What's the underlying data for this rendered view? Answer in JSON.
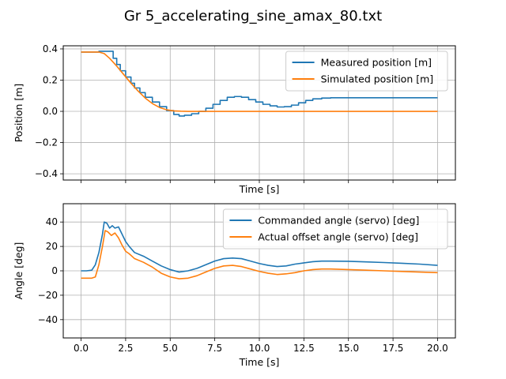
{
  "figure": {
    "title": "Gr 5_accelerating_sine_amax_80.txt"
  },
  "colors": {
    "blue": "#1f77b4",
    "orange": "#ff7f0e",
    "grid": "#b0b0b0"
  },
  "chart_data": [
    {
      "type": "line",
      "title": "",
      "xlabel": "Time [s]",
      "ylabel": "Position [m]",
      "xlim": [
        -1.0,
        21.0
      ],
      "ylim": [
        -0.44,
        0.42
      ],
      "xticks": [
        0.0,
        2.5,
        5.0,
        7.5,
        10.0,
        12.5,
        15.0,
        17.5,
        20.0
      ],
      "xtick_labels": [],
      "yticks": [
        -0.4,
        -0.2,
        0.0,
        0.2,
        0.4
      ],
      "ytick_labels": [
        "−0.4",
        "−0.2",
        "0.0",
        "0.2",
        "0.4"
      ],
      "grid": true,
      "legend_position": "upper right",
      "series": [
        {
          "name": "Measured position [m]",
          "color": "#1f77b4",
          "step": true,
          "x": [
            0,
            0.5,
            1.0,
            1.5,
            1.8,
            2.0,
            2.2,
            2.5,
            2.8,
            3.0,
            3.3,
            3.6,
            4.0,
            4.4,
            4.8,
            5.2,
            5.5,
            5.8,
            6.2,
            6.6,
            7.0,
            7.4,
            7.8,
            8.2,
            8.6,
            9.0,
            9.4,
            9.8,
            10.2,
            10.6,
            11.0,
            11.4,
            11.8,
            12.2,
            12.6,
            13.0,
            13.5,
            14.0,
            15.0,
            16.0,
            17.0,
            18.0,
            19.0,
            20.0
          ],
          "y": [
            0.38,
            0.38,
            0.385,
            0.385,
            0.34,
            0.3,
            0.26,
            0.22,
            0.18,
            0.15,
            0.12,
            0.09,
            0.06,
            0.03,
            0.005,
            -0.02,
            -0.03,
            -0.025,
            -0.015,
            0.0,
            0.02,
            0.045,
            0.07,
            0.09,
            0.095,
            0.09,
            0.075,
            0.06,
            0.045,
            0.035,
            0.028,
            0.03,
            0.04,
            0.055,
            0.07,
            0.08,
            0.085,
            0.087,
            0.087,
            0.087,
            0.087,
            0.087,
            0.087,
            0.087
          ]
        },
        {
          "name": "Simulated position [m]",
          "color": "#ff7f0e",
          "step": false,
          "x": [
            0,
            0.5,
            1.0,
            1.3,
            1.6,
            2.0,
            2.4,
            2.8,
            3.2,
            3.6,
            4.0,
            4.4,
            4.8,
            5.2,
            5.6,
            6.0,
            6.5,
            7.0,
            8.0,
            10.0,
            12.0,
            14.0,
            16.0,
            18.0,
            20.0
          ],
          "y": [
            0.38,
            0.38,
            0.38,
            0.37,
            0.34,
            0.29,
            0.235,
            0.18,
            0.13,
            0.085,
            0.05,
            0.025,
            0.01,
            0.003,
            0.001,
            0.0,
            0.0,
            0.0,
            0.0,
            0.0,
            0.0,
            0.0,
            0.0,
            0.0,
            0.0
          ]
        }
      ]
    },
    {
      "type": "line",
      "title": "",
      "xlabel": "Time [s]",
      "ylabel": "Angle [deg]",
      "xlim": [
        -1.0,
        21.0
      ],
      "ylim": [
        -55,
        55
      ],
      "xticks": [
        0.0,
        2.5,
        5.0,
        7.5,
        10.0,
        12.5,
        15.0,
        17.5,
        20.0
      ],
      "xtick_labels": [
        "0.0",
        "2.5",
        "5.0",
        "7.5",
        "10.0",
        "12.5",
        "15.0",
        "17.5",
        "20.0"
      ],
      "yticks": [
        -40,
        -20,
        0,
        20,
        40
      ],
      "ytick_labels": [
        "−40",
        "−20",
        "0",
        "20",
        "40"
      ],
      "grid": true,
      "legend_position": "upper right",
      "series": [
        {
          "name": "Commanded angle (servo) [deg]",
          "color": "#1f77b4",
          "step": false,
          "x": [
            0,
            0.3,
            0.6,
            0.8,
            1.0,
            1.2,
            1.3,
            1.45,
            1.6,
            1.75,
            1.9,
            2.1,
            2.3,
            2.5,
            2.7,
            3.0,
            3.5,
            4.0,
            4.5,
            5.0,
            5.5,
            6.0,
            6.5,
            7.0,
            7.5,
            8.0,
            8.5,
            9.0,
            9.5,
            10.0,
            10.5,
            11.0,
            11.5,
            12.0,
            12.5,
            13.0,
            13.5,
            14.0,
            15.0,
            16.0,
            17.0,
            18.0,
            19.0,
            20.0
          ],
          "y": [
            0,
            0,
            0.5,
            5,
            15,
            30,
            40,
            39,
            35,
            37,
            35,
            36,
            30,
            24,
            20,
            15,
            12,
            8,
            4,
            1,
            -1,
            0,
            2,
            5,
            8,
            10,
            10.5,
            10,
            8,
            6,
            4.5,
            3.5,
            4,
            5.5,
            6.5,
            7.5,
            8,
            8,
            7.8,
            7.3,
            6.8,
            6.2,
            5.5,
            4.5
          ]
        },
        {
          "name": "Actual offset angle (servo) [deg]",
          "color": "#ff7f0e",
          "step": false,
          "x": [
            0,
            0.3,
            0.6,
            0.8,
            1.0,
            1.2,
            1.35,
            1.5,
            1.7,
            1.9,
            2.1,
            2.3,
            2.5,
            2.7,
            3.0,
            3.5,
            4.0,
            4.5,
            5.0,
            5.5,
            6.0,
            6.5,
            7.0,
            7.5,
            8.0,
            8.5,
            9.0,
            9.5,
            10.0,
            10.5,
            11.0,
            11.5,
            12.0,
            12.5,
            13.0,
            13.5,
            14.0,
            15.0,
            16.0,
            17.0,
            18.0,
            19.0,
            20.0
          ],
          "y": [
            -6,
            -6,
            -6,
            -5,
            5,
            20,
            33,
            32,
            29,
            31,
            27,
            21,
            16,
            14,
            10,
            7,
            3,
            -2,
            -5,
            -6.5,
            -6,
            -4,
            -1,
            2,
            4,
            4.5,
            3.5,
            1.5,
            -0.5,
            -2,
            -3,
            -2.5,
            -1.5,
            0,
            1,
            1.5,
            1.5,
            1,
            0.5,
            0,
            -0.5,
            -1,
            -1.5
          ]
        }
      ]
    }
  ]
}
